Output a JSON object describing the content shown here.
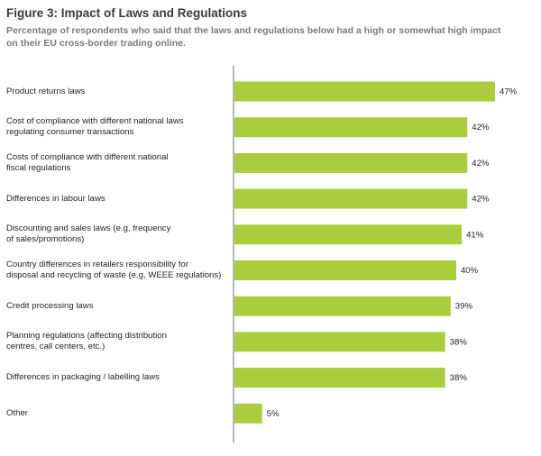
{
  "figure": {
    "title": "Figure 3: Impact of Laws and Regulations",
    "subtitle": "Percentage of respondents who said that the laws and regulations below had a high or somewhat high impact on their EU cross-border trading online."
  },
  "colors": {
    "bar": "#a9cd3c",
    "axis": "#6d6e71",
    "text": "#231f20"
  },
  "chart_data": {
    "type": "bar",
    "orientation": "horizontal",
    "title": "Figure 3: Impact of Laws and Regulations",
    "value_suffix": "%",
    "categories": [
      [
        "Product returns laws"
      ],
      [
        "Cost of compliance with different national laws",
        "regulating consumer transactions"
      ],
      [
        "Costs of compliance with different national",
        "fiscal regulations"
      ],
      [
        "Differences in labour laws"
      ],
      [
        "Discounting and sales laws (e.g, frequency",
        "of sales/promotions)"
      ],
      [
        "Country differences in retailers responsibility for",
        "disposal and recycling of waste (e.g, WEEE regulations)"
      ],
      [
        "Credit processing laws"
      ],
      [
        "Planning regulations (affecting distribution",
        "centres, call centers, etc.)"
      ],
      [
        "Differences in packaging / labelling laws"
      ],
      [
        "Other"
      ]
    ],
    "values": [
      47,
      42,
      42,
      42,
      41,
      40,
      39,
      38,
      38,
      5
    ],
    "xlim": [
      0,
      47
    ],
    "grid": false,
    "legend": false
  }
}
